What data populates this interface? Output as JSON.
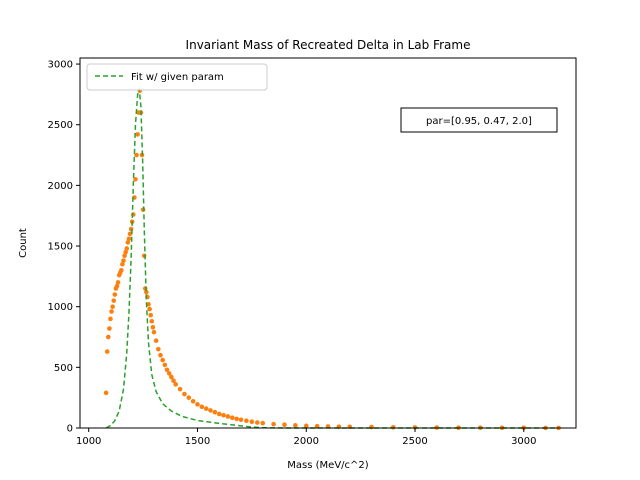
{
  "chart_data": {
    "type": "scatter",
    "title": "Invariant Mass of Recreated Delta in Lab Frame",
    "xlabel": "Mass (MeV/c^2)",
    "ylabel": "Count",
    "xlim": [
      960,
      3240
    ],
    "ylim": [
      0,
      3050
    ],
    "xticks": [
      1000,
      1500,
      2000,
      2500,
      3000
    ],
    "yticks": [
      0,
      500,
      1000,
      1500,
      2000,
      2500,
      3000
    ],
    "grid": false,
    "legend_position": "upper-left",
    "legend": [
      {
        "label": "Fit w/ given param",
        "style": "dashed",
        "color": "#2ca02c"
      }
    ],
    "annotation": "par=[0.95, 0.47, 2.0]",
    "series": [
      {
        "kind": "scatter",
        "color": "#ff7f0e",
        "points": [
          [
            1080,
            290
          ],
          [
            1085,
            630
          ],
          [
            1090,
            750
          ],
          [
            1095,
            820
          ],
          [
            1100,
            900
          ],
          [
            1105,
            960
          ],
          [
            1110,
            1000
          ],
          [
            1115,
            1050
          ],
          [
            1120,
            1100
          ],
          [
            1125,
            1150
          ],
          [
            1130,
            1170
          ],
          [
            1135,
            1200
          ],
          [
            1140,
            1260
          ],
          [
            1145,
            1280
          ],
          [
            1150,
            1300
          ],
          [
            1155,
            1350
          ],
          [
            1160,
            1380
          ],
          [
            1165,
            1420
          ],
          [
            1170,
            1450
          ],
          [
            1175,
            1480
          ],
          [
            1180,
            1530
          ],
          [
            1185,
            1560
          ],
          [
            1190,
            1600
          ],
          [
            1195,
            1640
          ],
          [
            1200,
            1700
          ],
          [
            1205,
            1760
          ],
          [
            1210,
            1900
          ],
          [
            1215,
            2050
          ],
          [
            1220,
            2250
          ],
          [
            1225,
            2420
          ],
          [
            1230,
            2600
          ],
          [
            1235,
            2780
          ],
          [
            1240,
            2600
          ],
          [
            1245,
            2250
          ],
          [
            1250,
            1800
          ],
          [
            1255,
            1420
          ],
          [
            1260,
            1150
          ],
          [
            1265,
            1120
          ],
          [
            1270,
            1080
          ],
          [
            1275,
            1020
          ],
          [
            1280,
            980
          ],
          [
            1285,
            930
          ],
          [
            1290,
            880
          ],
          [
            1295,
            830
          ],
          [
            1300,
            790
          ],
          [
            1310,
            720
          ],
          [
            1320,
            650
          ],
          [
            1330,
            600
          ],
          [
            1340,
            560
          ],
          [
            1350,
            520
          ],
          [
            1360,
            480
          ],
          [
            1370,
            450
          ],
          [
            1380,
            420
          ],
          [
            1390,
            390
          ],
          [
            1400,
            360
          ],
          [
            1420,
            320
          ],
          [
            1440,
            280
          ],
          [
            1460,
            250
          ],
          [
            1480,
            220
          ],
          [
            1500,
            195
          ],
          [
            1520,
            175
          ],
          [
            1540,
            160
          ],
          [
            1560,
            145
          ],
          [
            1580,
            130
          ],
          [
            1600,
            115
          ],
          [
            1620,
            105
          ],
          [
            1640,
            95
          ],
          [
            1660,
            85
          ],
          [
            1680,
            75
          ],
          [
            1700,
            68
          ],
          [
            1725,
            60
          ],
          [
            1750,
            52
          ],
          [
            1775,
            45
          ],
          [
            1800,
            40
          ],
          [
            1850,
            32
          ],
          [
            1900,
            27
          ],
          [
            1950,
            22
          ],
          [
            2000,
            18
          ],
          [
            2050,
            15
          ],
          [
            2100,
            13
          ],
          [
            2150,
            11
          ],
          [
            2200,
            10
          ],
          [
            2300,
            8
          ],
          [
            2400,
            6
          ],
          [
            2500,
            5
          ],
          [
            2600,
            4
          ],
          [
            2700,
            3
          ],
          [
            2800,
            3
          ],
          [
            2900,
            2
          ],
          [
            3000,
            2
          ],
          [
            3100,
            1
          ],
          [
            3160,
            1
          ]
        ]
      },
      {
        "name": "Fit w/ given param",
        "kind": "line",
        "dashed": true,
        "color": "#2ca02c",
        "points": [
          [
            1080,
            0
          ],
          [
            1100,
            20
          ],
          [
            1120,
            60
          ],
          [
            1140,
            140
          ],
          [
            1160,
            320
          ],
          [
            1175,
            620
          ],
          [
            1185,
            950
          ],
          [
            1195,
            1400
          ],
          [
            1205,
            2000
          ],
          [
            1215,
            2500
          ],
          [
            1225,
            2750
          ],
          [
            1232,
            2800
          ],
          [
            1240,
            2650
          ],
          [
            1248,
            2200
          ],
          [
            1256,
            1600
          ],
          [
            1265,
            1050
          ],
          [
            1275,
            700
          ],
          [
            1290,
            440
          ],
          [
            1310,
            300
          ],
          [
            1340,
            200
          ],
          [
            1380,
            140
          ],
          [
            1430,
            95
          ],
          [
            1500,
            62
          ],
          [
            1600,
            38
          ],
          [
            1700,
            18
          ],
          [
            1750,
            8
          ],
          [
            1800,
            2
          ],
          [
            1900,
            0
          ],
          [
            3160,
            0
          ]
        ]
      }
    ]
  }
}
